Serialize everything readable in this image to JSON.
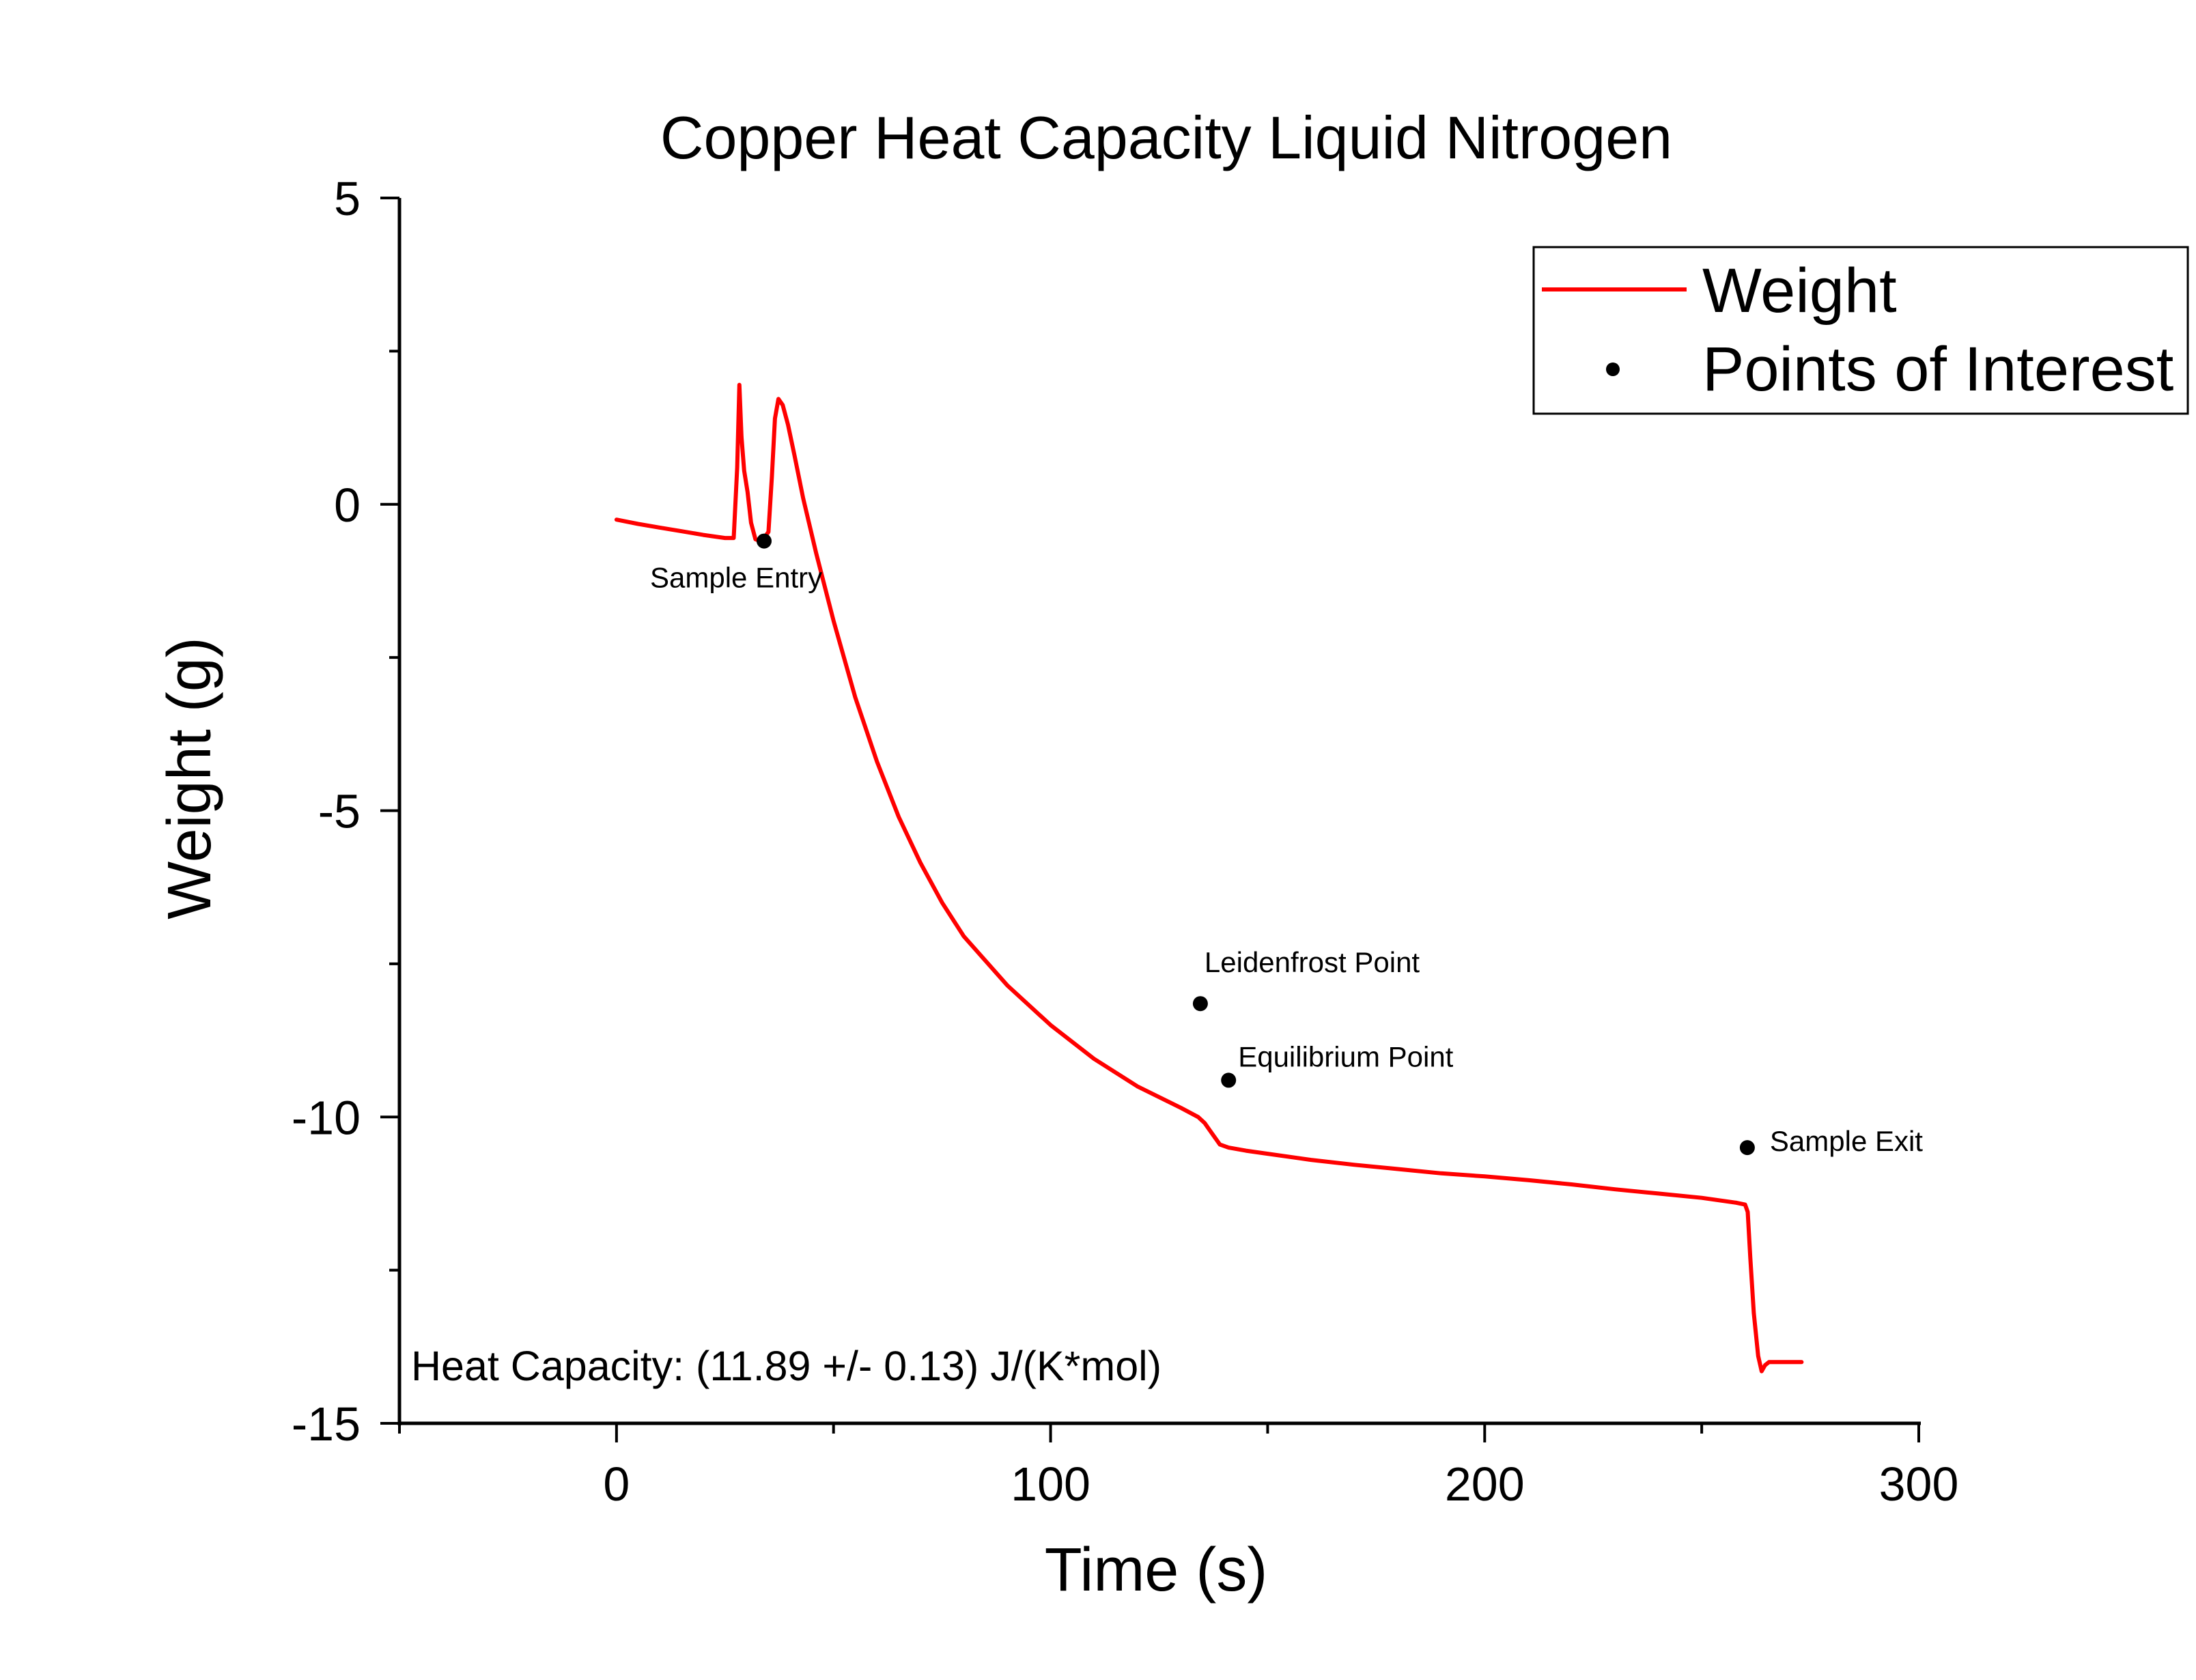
{
  "chart_data": {
    "type": "line",
    "title": "Copper Heat Capacity Liquid Nitrogen",
    "xlabel": "Time (s)",
    "ylabel": "Weight (g)",
    "xlim": [
      -50,
      300
    ],
    "ylim": [
      -15,
      5
    ],
    "x_ticks": [
      0,
      100,
      200,
      300
    ],
    "x_tick_labels": [
      "0",
      "100",
      "200",
      "300"
    ],
    "x_minor_ticks": [
      -50,
      50,
      150,
      250
    ],
    "y_ticks": [
      5,
      0,
      -5,
      -10,
      -15
    ],
    "y_tick_labels": [
      "5",
      "0",
      "-5",
      "-10",
      "-15"
    ],
    "y_minor_ticks": [
      2.5,
      -2.5,
      -7.5,
      -12.5
    ],
    "grid": false,
    "legend_position": "top-right",
    "series": [
      {
        "name": "Weight",
        "kind": "line",
        "color": "#ff0000",
        "x": [
          0,
          5,
          10,
          15,
          20,
          25,
          27.0,
          27.8,
          28.3,
          28.8,
          29.4,
          30.2,
          31.0,
          32.0,
          33.0,
          34.0,
          35.0,
          35.8,
          36.5,
          37.3,
          38.3,
          39.5,
          41.0,
          43.0,
          46.0,
          50.0,
          55.0,
          60.0,
          65.0,
          70.0,
          75.0,
          80.0,
          90.0,
          100.0,
          110.0,
          120.0,
          130.0,
          134.0,
          135.5,
          136.5,
          137.5,
          139.0,
          141.0,
          145.0,
          150.0,
          160.0,
          170.0,
          180.0,
          190.0,
          200.0,
          210.0,
          220.0,
          230.0,
          240.0,
          250.0,
          258.0,
          260.0,
          260.6,
          261.2,
          262.0,
          263.0,
          263.8,
          264.6,
          265.5,
          267.0,
          270.0,
          273.0
        ],
        "y": [
          -0.25,
          -0.32,
          -0.38,
          -0.44,
          -0.5,
          -0.55,
          -0.55,
          0.6,
          1.95,
          1.1,
          0.55,
          0.2,
          -0.3,
          -0.57,
          -0.6,
          -0.55,
          -0.45,
          0.45,
          1.4,
          1.72,
          1.62,
          1.3,
          0.8,
          0.1,
          -0.8,
          -1.9,
          -3.15,
          -4.2,
          -5.1,
          -5.85,
          -6.5,
          -7.05,
          -7.85,
          -8.5,
          -9.05,
          -9.5,
          -9.85,
          -10.0,
          -10.1,
          -10.2,
          -10.3,
          -10.45,
          -10.5,
          -10.55,
          -10.6,
          -10.7,
          -10.78,
          -10.85,
          -10.92,
          -10.97,
          -11.03,
          -11.1,
          -11.18,
          -11.25,
          -11.32,
          -11.4,
          -11.43,
          -11.55,
          -12.3,
          -13.2,
          -13.9,
          -14.15,
          -14.05,
          -14.0,
          -14.0,
          -14.0,
          -14.0
        ]
      },
      {
        "name": "Points of Interest",
        "kind": "scatter",
        "color": "#000000",
        "points": [
          {
            "x": 34,
            "y": -0.6,
            "label": "Sample Entry"
          },
          {
            "x": 134.5,
            "y": -8.15,
            "label": "Leidenfrost Point"
          },
          {
            "x": 141,
            "y": -9.4,
            "label": "Equilibrium Point"
          },
          {
            "x": 260.5,
            "y": -10.5,
            "label": "Sample Exit"
          }
        ]
      }
    ],
    "annotation": "Heat Capacity: (11.89 +/- 0.13) J/(K*mol)"
  }
}
